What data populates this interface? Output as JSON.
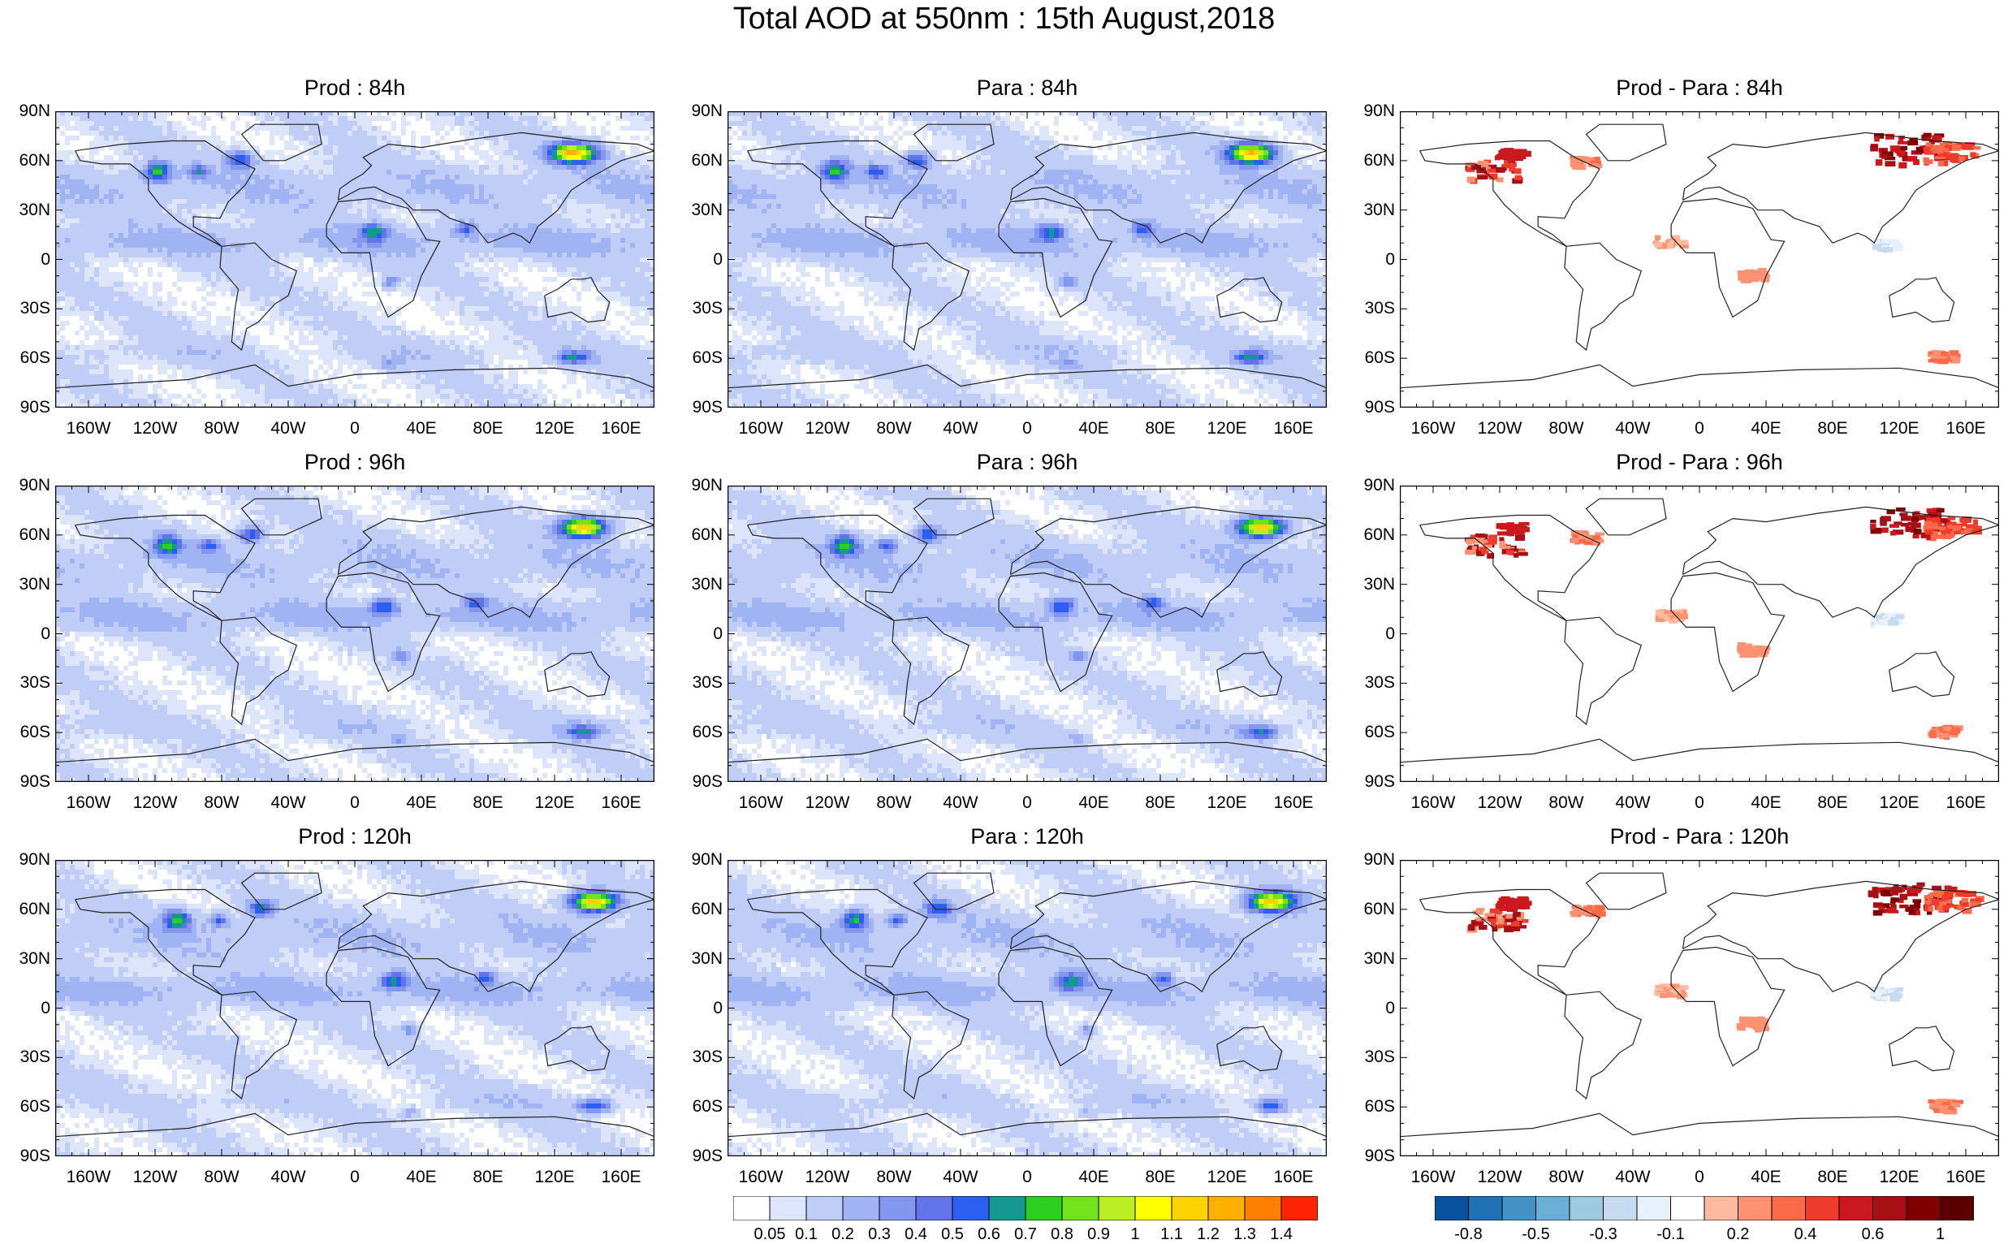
{
  "title": "Total AOD at 550nm : 15th August,2018",
  "lat_labels": [
    "90N",
    "60N",
    "30N",
    "0",
    "30S",
    "60S",
    "90S"
  ],
  "lon_labels": [
    "160W",
    "120W",
    "80W",
    "40W",
    "0",
    "40E",
    "80E",
    "120E",
    "160E"
  ],
  "panels": [
    {
      "title": "Prod : 84h",
      "kind": "abs",
      "variant": 0
    },
    {
      "title": "Para : 84h",
      "kind": "abs",
      "variant": 1
    },
    {
      "title": "Prod - Para : 84h",
      "kind": "diff",
      "variant": 0
    },
    {
      "title": "Prod : 96h",
      "kind": "abs",
      "variant": 2
    },
    {
      "title": "Para : 96h",
      "kind": "abs",
      "variant": 3
    },
    {
      "title": "Prod - Para : 96h",
      "kind": "diff",
      "variant": 1
    },
    {
      "title": "Prod : 120h",
      "kind": "abs",
      "variant": 4
    },
    {
      "title": "Para : 120h",
      "kind": "abs",
      "variant": 5
    },
    {
      "title": "Prod - Para : 120h",
      "kind": "diff",
      "variant": 2
    }
  ],
  "colorbar_aod": {
    "labels": [
      "0.05",
      "0.1",
      "0.2",
      "0.3",
      "0.4",
      "0.5",
      "0.6",
      "0.7",
      "0.8",
      "0.9",
      "1",
      "1.1",
      "1.2",
      "1.3",
      "1.4"
    ],
    "colors": [
      "#ffffff",
      "#dde5fb",
      "#bfcdf7",
      "#a0b4f3",
      "#8397ef",
      "#6373ea",
      "#2b5ff0",
      "#159890",
      "#2bd01e",
      "#74e21c",
      "#bbee24",
      "#ffff00",
      "#ffd200",
      "#ffaf00",
      "#ff8000",
      "#ff2500"
    ]
  },
  "colorbar_diff": {
    "labels": [
      "-0.8",
      "-0.5",
      "-0.3",
      "-0.1",
      "0.2",
      "0.4",
      "0.6",
      "1"
    ],
    "colors": [
      "#08519c",
      "#2171b5",
      "#4292c6",
      "#6baed6",
      "#9ecae1",
      "#c6dbef",
      "#e6f1fb",
      "#ffffff",
      "#fcbba1",
      "#fc9272",
      "#fb6a4a",
      "#ef3b2c",
      "#cb181d",
      "#a50f15",
      "#7f0000",
      "#5a0000"
    ]
  }
}
